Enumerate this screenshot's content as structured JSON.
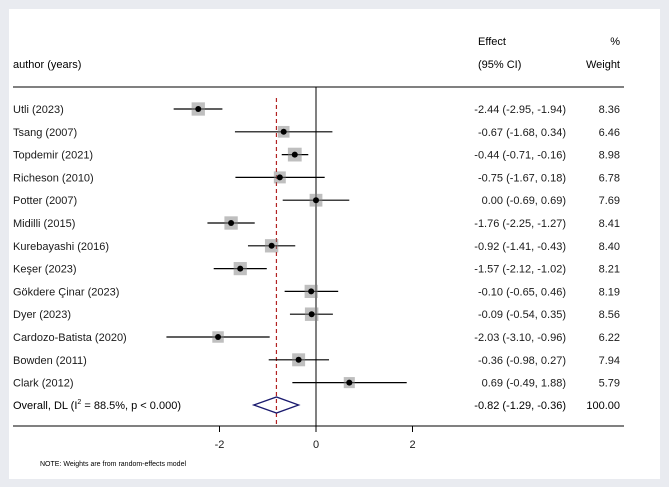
{
  "chart_data": {
    "type": "forest",
    "header": {
      "study_col": "author (years)",
      "effect_line1": "Effect",
      "effect_line2": "(95% CI)",
      "weight_line1": "%",
      "weight_line2": "Weight"
    },
    "studies": [
      {
        "label": "Utli (2023)",
        "effect": -2.44,
        "lower": -2.95,
        "upper": -1.94,
        "ci_text": "-2.44 (-2.95, -1.94)",
        "weight": 8.36,
        "weight_text": "8.36"
      },
      {
        "label": "Tsang (2007)",
        "effect": -0.67,
        "lower": -1.68,
        "upper": 0.34,
        "ci_text": "-0.67 (-1.68, 0.34)",
        "weight": 6.46,
        "weight_text": "6.46"
      },
      {
        "label": "Topdemir (2021)",
        "effect": -0.44,
        "lower": -0.71,
        "upper": -0.16,
        "ci_text": "-0.44 (-0.71, -0.16)",
        "weight": 8.98,
        "weight_text": "8.98"
      },
      {
        "label": "Richeson (2010)",
        "effect": -0.75,
        "lower": -1.67,
        "upper": 0.18,
        "ci_text": "-0.75 (-1.67, 0.18)",
        "weight": 6.78,
        "weight_text": "6.78"
      },
      {
        "label": "Potter (2007)",
        "effect": 0.0,
        "lower": -0.69,
        "upper": 0.69,
        "ci_text": "0.00 (-0.69, 0.69)",
        "weight": 7.69,
        "weight_text": "7.69"
      },
      {
        "label": "Midilli (2015)",
        "effect": -1.76,
        "lower": -2.25,
        "upper": -1.27,
        "ci_text": "-1.76 (-2.25, -1.27)",
        "weight": 8.41,
        "weight_text": "8.41"
      },
      {
        "label": "Kurebayashi (2016)",
        "effect": -0.92,
        "lower": -1.41,
        "upper": -0.43,
        "ci_text": "-0.92 (-1.41, -0.43)",
        "weight": 8.4,
        "weight_text": "8.40"
      },
      {
        "label": "Keşer (2023)",
        "effect": -1.57,
        "lower": -2.12,
        "upper": -1.02,
        "ci_text": "-1.57 (-2.12, -1.02)",
        "weight": 8.21,
        "weight_text": "8.21"
      },
      {
        "label": "Gökdere Çinar (2023)",
        "effect": -0.1,
        "lower": -0.65,
        "upper": 0.46,
        "ci_text": "-0.10 (-0.65, 0.46)",
        "weight": 8.19,
        "weight_text": "8.19"
      },
      {
        "label": "Dyer (2023)",
        "effect": -0.09,
        "lower": -0.54,
        "upper": 0.35,
        "ci_text": "-0.09 (-0.54, 0.35)",
        "weight": 8.56,
        "weight_text": "8.56"
      },
      {
        "label": "Cardozo-Batista (2020)",
        "effect": -2.03,
        "lower": -3.1,
        "upper": -0.96,
        "ci_text": "-2.03 (-3.10, -0.96)",
        "weight": 6.22,
        "weight_text": "6.22"
      },
      {
        "label": "Bowden (2011)",
        "effect": -0.36,
        "lower": -0.98,
        "upper": 0.27,
        "ci_text": "-0.36 (-0.98, 0.27)",
        "weight": 7.94,
        "weight_text": "7.94"
      },
      {
        "label": "Clark (2012)",
        "effect": 0.69,
        "lower": -0.49,
        "upper": 1.88,
        "ci_text": "0.69 (-0.49, 1.88)",
        "weight": 5.79,
        "weight_text": "5.79"
      }
    ],
    "overall": {
      "label_prefix": "Overall, DL (I",
      "label_sup": "2",
      "label_suffix": " = 88.5%, p < 0.000)",
      "effect": -0.82,
      "lower": -1.29,
      "upper": -0.36,
      "ci_text": "-0.82 (-1.29, -0.36)",
      "weight_text": "100.00"
    },
    "x_ticks": [
      -2,
      0,
      2
    ],
    "x_tick_labels": [
      "-2",
      "0",
      "2"
    ],
    "xlim": [
      -3.2,
      2.6
    ],
    "null_line": 0,
    "overall_line": -0.82,
    "footnote": "NOTE: Weights are from random-effects model",
    "colors": {
      "background_outer": "#e9ebf0",
      "panel": "#ffffff",
      "ci_line": "#000000",
      "marker": "#000000",
      "box_fill": "#7f7f7f",
      "overall_line": "#b22222",
      "diamond": "#1a1a6e",
      "text": "#1a1a1a"
    }
  }
}
